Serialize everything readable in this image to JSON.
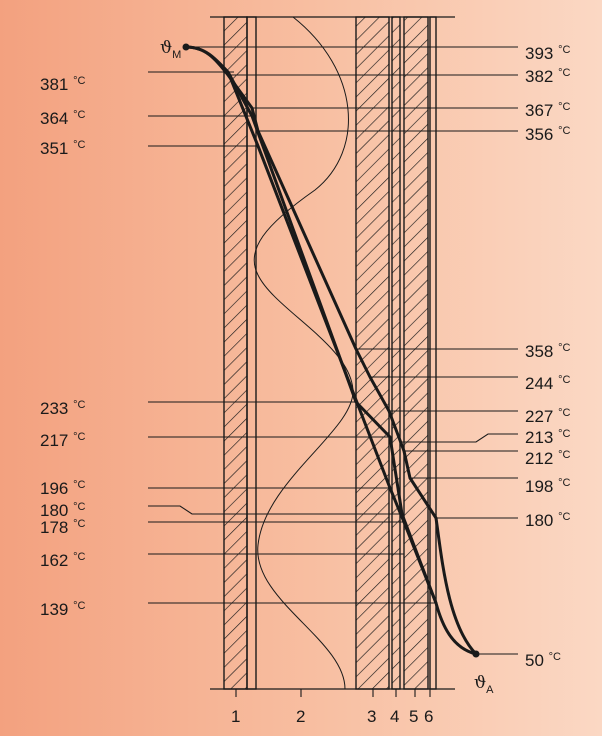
{
  "symbols": {
    "inner": {
      "base": "ϑ",
      "sub": "M"
    },
    "outer": {
      "base": "ϑ",
      "sub": "A"
    }
  },
  "left_labels": [
    {
      "value": "381",
      "unit": "°C"
    },
    {
      "value": "364",
      "unit": "°C"
    },
    {
      "value": "351",
      "unit": "°C"
    },
    {
      "value": "233",
      "unit": "°C"
    },
    {
      "value": "217",
      "unit": "°C"
    },
    {
      "value": "196",
      "unit": "°C"
    },
    {
      "value": "180",
      "unit": "°C"
    },
    {
      "value": "178",
      "unit": "°C"
    },
    {
      "value": "162",
      "unit": "°C"
    },
    {
      "value": "139",
      "unit": "°C"
    }
  ],
  "right_labels": [
    {
      "value": "393",
      "unit": "°C"
    },
    {
      "value": "382",
      "unit": "°C"
    },
    {
      "value": "367",
      "unit": "°C"
    },
    {
      "value": "356",
      "unit": "°C"
    },
    {
      "value": "358",
      "unit": "°C"
    },
    {
      "value": "244",
      "unit": "°C"
    },
    {
      "value": "227",
      "unit": "°C"
    },
    {
      "value": "213",
      "unit": "°C"
    },
    {
      "value": "212",
      "unit": "°C"
    },
    {
      "value": "198",
      "unit": "°C"
    },
    {
      "value": "180",
      "unit": "°C"
    },
    {
      "value": "50",
      "unit": "°C"
    }
  ],
  "layers": [
    "1",
    "2",
    "3",
    "4",
    "5",
    "6"
  ],
  "colors": {
    "background_left": "#f3a17f",
    "background_right": "#fbd8c4",
    "ink": "#1a1a1a"
  }
}
